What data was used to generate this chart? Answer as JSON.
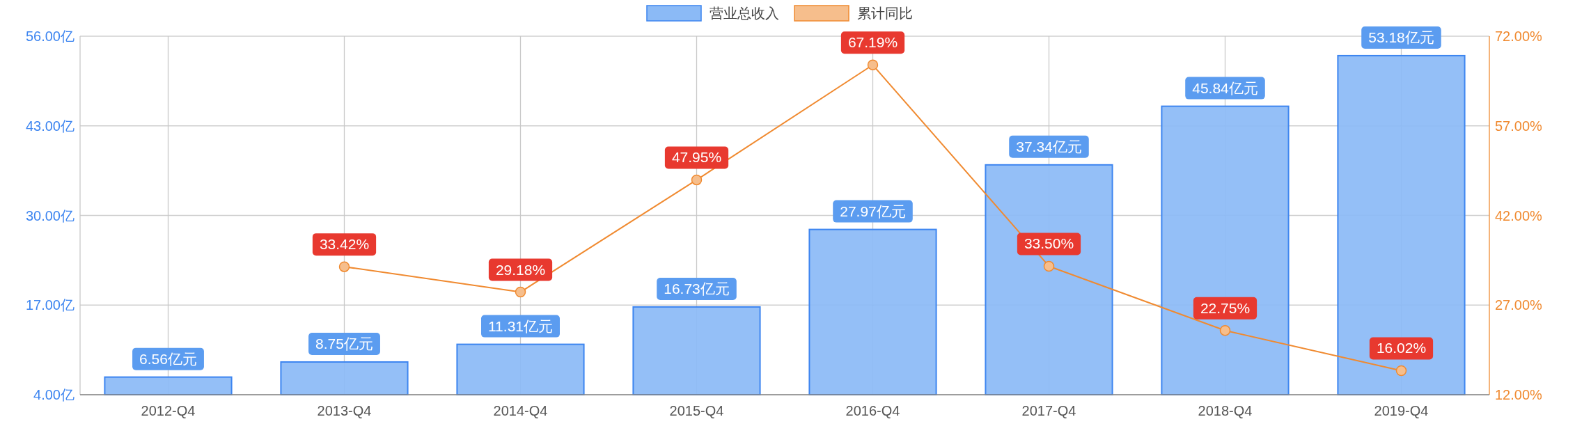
{
  "chart_data": {
    "type": "bar",
    "categories": [
      "2012-Q4",
      "2013-Q4",
      "2014-Q4",
      "2015-Q4",
      "2016-Q4",
      "2017-Q4",
      "2018-Q4",
      "2019-Q4"
    ],
    "series": [
      {
        "name": "营业总收入",
        "color": "#8bbaf6",
        "values": [
          6.56,
          8.75,
          11.31,
          16.73,
          27.97,
          37.34,
          45.84,
          53.18
        ],
        "value_labels": [
          "6.56亿元",
          "8.75亿元",
          "11.31亿元",
          "16.73亿元",
          "27.97亿元",
          "37.34亿元",
          "45.84亿元",
          "53.18亿元"
        ]
      },
      {
        "name": "累计同比",
        "type": "line",
        "axis": "y2",
        "color": "#f08a30",
        "marker": "circle",
        "values": [
          null,
          33.42,
          29.18,
          47.95,
          67.19,
          33.5,
          22.75,
          16.02
        ],
        "value_labels": [
          null,
          "33.42%",
          "29.18%",
          "47.95%",
          "67.19%",
          "33.50%",
          "22.75%",
          "16.02%"
        ]
      }
    ],
    "ylim": [
      4,
      56
    ],
    "yticks": [
      {
        "value": 4,
        "label": "4.00亿"
      },
      {
        "value": 17,
        "label": "17.00亿"
      },
      {
        "value": 30,
        "label": "30.00亿"
      },
      {
        "value": 43,
        "label": "43.00亿"
      },
      {
        "value": 56,
        "label": "56.00亿"
      }
    ],
    "y2lim": [
      12,
      72
    ],
    "y2ticks": [
      {
        "value": 12,
        "label": "12.00%"
      },
      {
        "value": 27,
        "label": "27.00%"
      },
      {
        "value": 42,
        "label": "42.00%"
      },
      {
        "value": 57,
        "label": "57.00%"
      },
      {
        "value": 72,
        "label": "72.00%"
      }
    ],
    "grid": true,
    "legend": "top"
  }
}
